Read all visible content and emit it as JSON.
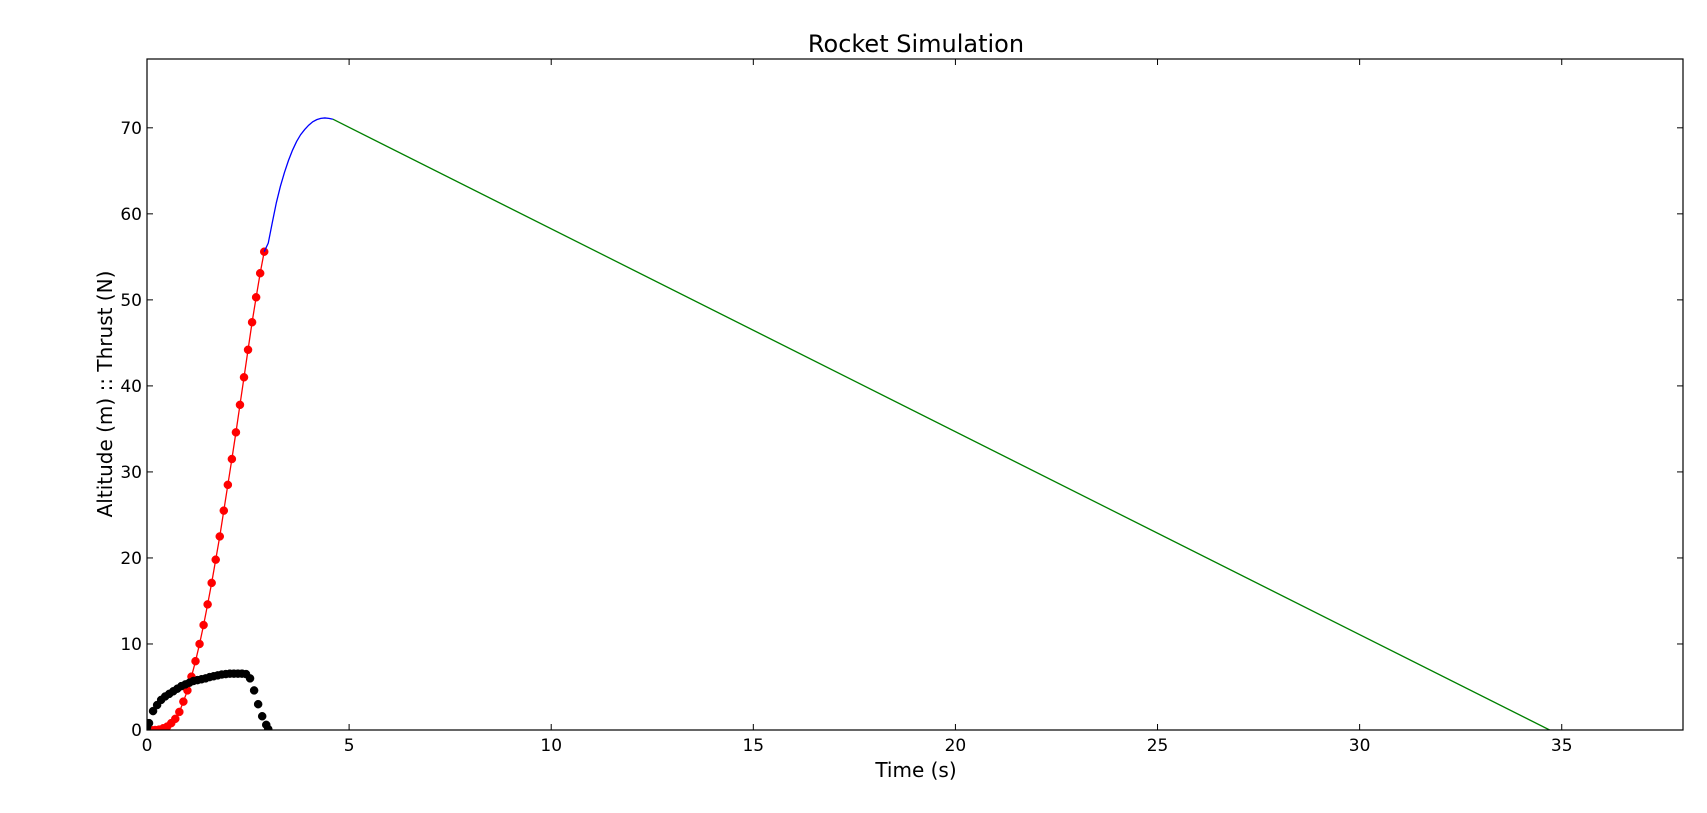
{
  "chart_data": {
    "type": "line",
    "title": "Rocket Simulation",
    "xlabel": "Time (s)",
    "ylabel": "Altitude (m) :: Thrust (N)",
    "xlim": [
      0,
      38
    ],
    "ylim": [
      0,
      78
    ],
    "xticks": [
      0,
      5,
      10,
      15,
      20,
      25,
      30,
      35
    ],
    "yticks": [
      0,
      10,
      20,
      30,
      40,
      50,
      60,
      70
    ],
    "grid": false,
    "legend": null,
    "series": [
      {
        "color": "#ff0000",
        "style": "line-markers",
        "x": [
          0.0,
          0.1,
          0.2,
          0.3,
          0.4,
          0.5,
          0.6,
          0.7,
          0.8,
          0.9,
          1.0,
          1.1,
          1.2,
          1.3,
          1.4,
          1.5,
          1.6,
          1.7,
          1.8,
          1.9,
          2.0,
          2.1,
          2.2,
          2.3,
          2.4,
          2.5,
          2.6,
          2.7,
          2.8,
          2.9
        ],
        "y": [
          0.0,
          0.0,
          0.0,
          0.05,
          0.2,
          0.4,
          0.8,
          1.3,
          2.1,
          3.3,
          4.6,
          6.2,
          8.0,
          10.0,
          12.2,
          14.6,
          17.1,
          19.8,
          22.5,
          25.5,
          28.5,
          31.5,
          34.6,
          37.8,
          41.0,
          44.2,
          47.4,
          50.3,
          53.1,
          55.6
        ]
      },
      {
        "color": "#0000ff",
        "style": "line",
        "x": [
          2.9,
          3.0,
          3.1,
          3.2,
          3.3,
          3.4,
          3.5,
          3.6,
          3.7,
          3.8,
          3.9,
          4.0,
          4.1,
          4.2,
          4.3,
          4.4,
          4.5,
          4.6
        ],
        "y": [
          55.6,
          56.6,
          59.0,
          61.3,
          63.2,
          64.8,
          66.2,
          67.4,
          68.4,
          69.2,
          69.8,
          70.3,
          70.7,
          70.95,
          71.1,
          71.15,
          71.1,
          71.0
        ]
      },
      {
        "color": "#008000",
        "style": "line",
        "x": [
          4.6,
          34.7
        ],
        "y": [
          71.0,
          0.0
        ]
      },
      {
        "color": "#000000",
        "style": "markers",
        "x": [
          0.0,
          0.05,
          0.15,
          0.25,
          0.35,
          0.45,
          0.55,
          0.65,
          0.75,
          0.85,
          0.95,
          1.05,
          1.15,
          1.25,
          1.35,
          1.45,
          1.55,
          1.65,
          1.75,
          1.85,
          1.95,
          2.05,
          2.15,
          2.25,
          2.35,
          2.45,
          2.55,
          2.65,
          2.75,
          2.85,
          2.95,
          3.0
        ],
        "y": [
          0.3,
          0.8,
          2.2,
          2.9,
          3.5,
          3.9,
          4.2,
          4.5,
          4.8,
          5.1,
          5.3,
          5.5,
          5.7,
          5.8,
          5.9,
          6.0,
          6.15,
          6.25,
          6.35,
          6.45,
          6.5,
          6.55,
          6.55,
          6.55,
          6.55,
          6.5,
          6.0,
          4.6,
          3.0,
          1.6,
          0.6,
          0.1
        ]
      }
    ]
  }
}
